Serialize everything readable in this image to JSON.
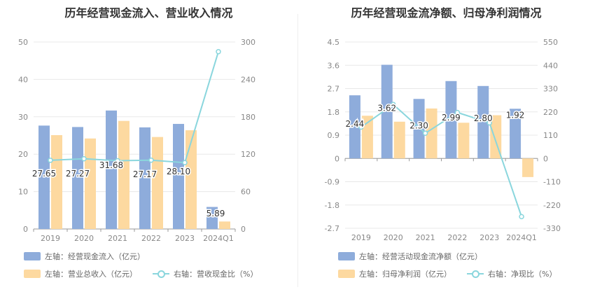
{
  "colors": {
    "bar1": "#8eacdb",
    "bar2": "#fdd9a0",
    "line": "#8ad6dd",
    "grid": "#e8e8e8",
    "axis": "#888888",
    "label": "#333333"
  },
  "chart_data": [
    {
      "type": "bar",
      "title": "历年经营现金流入、营业收入情况",
      "categories": [
        "2019",
        "2020",
        "2021",
        "2022",
        "2023",
        "2024Q1"
      ],
      "left_axis": {
        "ticks": [
          "0",
          "10",
          "20",
          "30",
          "40",
          "50"
        ],
        "ylim": [
          0,
          50
        ]
      },
      "right_axis": {
        "ticks": [
          "0",
          "60",
          "120",
          "180",
          "240",
          "300"
        ],
        "ylim": [
          0,
          300
        ]
      },
      "series": [
        {
          "name": "左轴：经营现金流入（亿元）",
          "type": "bar",
          "axis": "left",
          "values": [
            27.65,
            27.27,
            31.68,
            27.17,
            28.1,
            5.89
          ],
          "labels": [
            "27.65",
            "27.27",
            "31.68",
            "27.17",
            "28.10",
            "5.89"
          ]
        },
        {
          "name": "左轴：营业总收入（亿元）",
          "type": "bar",
          "axis": "left",
          "values": [
            25.1,
            24.2,
            28.9,
            24.6,
            26.4,
            2.0
          ]
        },
        {
          "name": "右轴：营收现金比（%）",
          "type": "line",
          "axis": "right",
          "values": [
            110.2,
            112.7,
            109.6,
            110.4,
            106.4,
            284.5
          ]
        }
      ]
    },
    {
      "type": "bar",
      "title": "历年经营现金流净额、归母净利润情况",
      "categories": [
        "2019",
        "2020",
        "2021",
        "2022",
        "2023",
        "2024Q1"
      ],
      "left_axis": {
        "ticks": [
          "-2.7",
          "-1.8",
          "-0.9",
          "0",
          "0.9",
          "1.8",
          "2.7",
          "3.6",
          "4.5"
        ],
        "ylim": [
          -2.7,
          4.5
        ]
      },
      "right_axis": {
        "ticks": [
          "-330",
          "-220",
          "-110",
          "0",
          "110",
          "220",
          "330",
          "440",
          "550"
        ],
        "ylim": [
          -330,
          550
        ]
      },
      "series": [
        {
          "name": "左轴：经营活动现金流净额（亿元）",
          "type": "bar",
          "axis": "left",
          "values": [
            2.44,
            3.62,
            2.3,
            2.99,
            2.8,
            1.92
          ],
          "labels": [
            "2.44",
            "3.62",
            "2.30",
            "2.99",
            "2.80",
            "1.92"
          ]
        },
        {
          "name": "左轴：归母净利润（亿元）",
          "type": "bar",
          "axis": "left",
          "values": [
            1.65,
            1.42,
            1.93,
            1.38,
            1.67,
            -0.72
          ]
        },
        {
          "name": "右轴：净现比（%）",
          "type": "line",
          "axis": "right",
          "values": [
            148,
            255,
            119,
            217,
            168,
            -275
          ]
        }
      ]
    }
  ]
}
